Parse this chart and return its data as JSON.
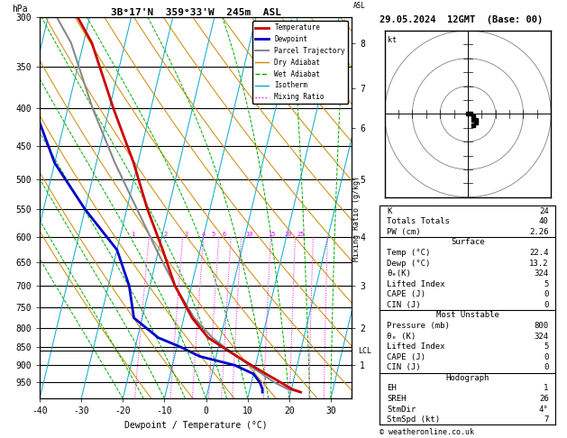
{
  "title_left": "3B°17'N  359°33'W  245m  ASL",
  "title_right": "29.05.2024  12GMT  (Base: 00)",
  "xlabel": "Dewpoint / Temperature (°C)",
  "ylabel_left": "hPa",
  "ylabel_right_mid": "Mixing Ratio (g/kg)",
  "pressure_levels": [
    300,
    350,
    400,
    450,
    500,
    550,
    600,
    650,
    700,
    750,
    800,
    850,
    900,
    950
  ],
  "temp_range": [
    -40,
    35
  ],
  "temp_ticks": [
    -40,
    -30,
    -20,
    -10,
    0,
    10,
    20,
    30
  ],
  "km_ticks": [
    1,
    2,
    3,
    4,
    5,
    6,
    7,
    8
  ],
  "km_pressures": [
    900,
    800,
    700,
    600,
    500,
    425,
    375,
    325
  ],
  "lcl_pressure": 860,
  "mixing_ratio_labels": [
    "1",
    "2",
    "3",
    "4",
    "5",
    "6",
    "10",
    "15",
    "20",
    "25"
  ],
  "mixing_ratio_temps": [
    -27,
    -19,
    -14,
    -10,
    -7.5,
    -5,
    1,
    6.5,
    10.5,
    13.5
  ],
  "mixing_ratio_pressure": 600,
  "temp_profile_T": [
    22.4,
    20.0,
    17.0,
    13.0,
    9.0,
    5.0,
    1.0,
    -3.0,
    -8.0,
    -14.0,
    -19.0,
    -25.0,
    -31.0,
    -39.0,
    -48.0,
    -57.0
  ],
  "temp_profile_P": [
    980,
    970,
    950,
    925,
    900,
    875,
    850,
    825,
    775,
    700,
    625,
    550,
    475,
    400,
    325,
    280
  ],
  "dewp_profile_T": [
    13.2,
    13.0,
    12.0,
    10.0,
    5.0,
    -4.0,
    -9.0,
    -15.0,
    -22.0,
    -25.0,
    -30.0,
    -40.0,
    -50.0,
    -58.0,
    -65.0,
    -70.0
  ],
  "dewp_profile_P": [
    980,
    970,
    950,
    925,
    900,
    875,
    850,
    825,
    775,
    700,
    625,
    550,
    475,
    400,
    325,
    280
  ],
  "parcel_T": [
    22.4,
    19.0,
    15.5,
    12.0,
    8.5,
    5.0,
    1.5,
    -2.0,
    -7.5,
    -14.0,
    -20.5,
    -27.5,
    -35.5,
    -44.0,
    -53.0,
    -62.0
  ],
  "parcel_P": [
    980,
    970,
    950,
    925,
    900,
    875,
    850,
    825,
    775,
    700,
    625,
    550,
    475,
    400,
    325,
    280
  ],
  "bg_color": "#ffffff",
  "grid_color": "#000000",
  "temp_color": "#cc0000",
  "dewp_color": "#0000cc",
  "parcel_color": "#888888",
  "dry_adiabat_color": "#cc8800",
  "wet_adiabat_color": "#00aa00",
  "isotherm_color": "#00aacc",
  "mixing_ratio_color": "#ff00ff",
  "legend_temp": "Temperature",
  "legend_dewp": "Dewpoint",
  "legend_parcel": "Parcel Trajectory",
  "legend_dry": "Dry Adiabat",
  "legend_wet": "Wet Adiabat",
  "legend_iso": "Isotherm",
  "legend_mix": "Mixing Ratio",
  "stats_K": 24,
  "stats_TT": 40,
  "stats_PW": "2.26",
  "surf_temp": "22.4",
  "surf_dewp": "13.2",
  "surf_theta": "324",
  "surf_li": 5,
  "surf_cape": 0,
  "surf_cin": 0,
  "mu_pres": 800,
  "mu_theta": "324",
  "mu_li": 5,
  "mu_cape": 0,
  "mu_cin": 0,
  "hodo_EH": 1,
  "hodo_SREH": 26,
  "hodo_StmDir": "4°",
  "hodo_StmSpd": 7,
  "copyright": "© weatheronline.co.uk",
  "skew_factor": 22.0,
  "p_min": 300,
  "p_max": 1000
}
